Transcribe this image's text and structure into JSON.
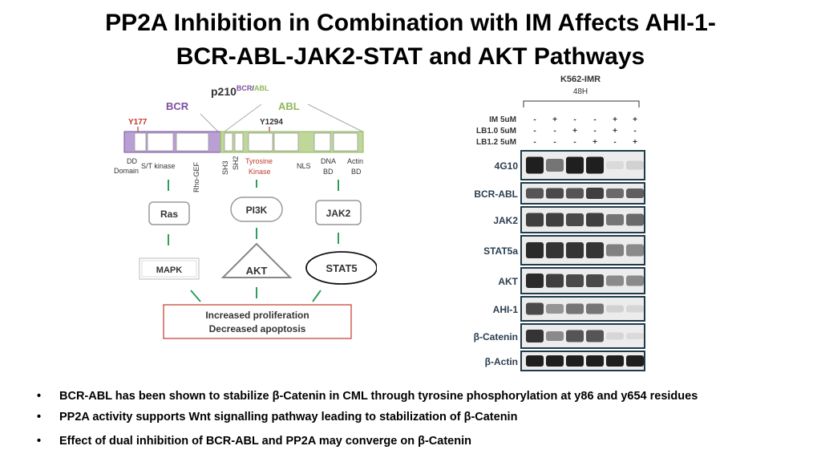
{
  "slide": {
    "title_line1": "PP2A Inhibition in Combination with IM Affects AHI-1-",
    "title_line2": "BCR-ABL-JAK2-STAT and AKT Pathways"
  },
  "diagram": {
    "protein_main": "p210",
    "protein_sup_bcr": "BCR",
    "protein_sup_sep": "/",
    "protein_sup_abl": "ABL",
    "bcr_label": "BCR",
    "abl_label": "ABL",
    "site_y177": "Y177",
    "site_y1294": "Y1294",
    "domain_dd_1": "DD",
    "domain_dd_2": "Domain",
    "domain_st": "S/T kinase",
    "domain_rho": "Rho-GEF",
    "domain_sh3": "SH3",
    "domain_sh2": "SH2",
    "domain_tk_1": "Tyrosine",
    "domain_tk_2": "Kinase",
    "domain_nls": "NLS",
    "domain_dna_1": "DNA",
    "domain_dna_2": "BD",
    "domain_actin_1": "Actin",
    "domain_actin_2": "BD",
    "node_ras": "Ras",
    "node_pi3k": "PI3K",
    "node_jak2": "JAK2",
    "node_mapk": "MAPK",
    "node_akt": "AKT",
    "node_stat5": "STAT5",
    "outcome_line1": "Increased proliferation",
    "outcome_line2": "Decreased apoptosis",
    "colors": {
      "bcr": "#7B4E9E",
      "abl": "#8FB85A",
      "link": "#2E9E5B",
      "outcome_border": "#C0392B",
      "site_red": "#C0392B"
    }
  },
  "blot": {
    "cell_line": "K562-IMR",
    "time": "48H",
    "treatments": [
      {
        "label": "IM 5uM",
        "marks": [
          "-",
          "+",
          "-",
          "-",
          "+",
          "+"
        ]
      },
      {
        "label": "LB1.0 5uM",
        "marks": [
          "-",
          "-",
          "+",
          "-",
          "+",
          "-"
        ]
      },
      {
        "label": "LB1.2 5uM",
        "marks": [
          "-",
          "-",
          "-",
          "+",
          "-",
          "+"
        ]
      }
    ],
    "rows": [
      {
        "label": "4G10",
        "intensity": [
          0.95,
          0.55,
          0.95,
          0.95,
          0.08,
          0.12
        ]
      },
      {
        "label": "BCR-ABL",
        "intensity": [
          0.7,
          0.75,
          0.7,
          0.8,
          0.6,
          0.65
        ]
      },
      {
        "label": "JAK2",
        "intensity": [
          0.8,
          0.8,
          0.75,
          0.8,
          0.55,
          0.6
        ]
      },
      {
        "label": "STAT5a",
        "intensity": [
          0.9,
          0.85,
          0.85,
          0.85,
          0.5,
          0.45
        ]
      },
      {
        "label": "AKT",
        "intensity": [
          0.9,
          0.8,
          0.75,
          0.75,
          0.45,
          0.45
        ]
      },
      {
        "label": "AHI-1",
        "intensity": [
          0.75,
          0.4,
          0.55,
          0.55,
          0.12,
          0.1
        ]
      },
      {
        "label": "β-Catenin",
        "intensity": [
          0.85,
          0.45,
          0.7,
          0.7,
          0.1,
          0.08
        ]
      },
      {
        "label": "β-Actin",
        "intensity": [
          0.95,
          0.95,
          0.95,
          0.95,
          0.95,
          0.95
        ]
      }
    ]
  },
  "bullets": [
    "BCR-ABL has been shown to stabilize β-Catenin in CML through tyrosine phosphorylation at y86 and y654 residues",
    "PP2A activity supports Wnt signalling pathway leading to stabilization of β-Catenin",
    "Effect of dual inhibition of BCR-ABL and PP2A may converge on β-Catenin"
  ],
  "bullet_symbol": "•"
}
